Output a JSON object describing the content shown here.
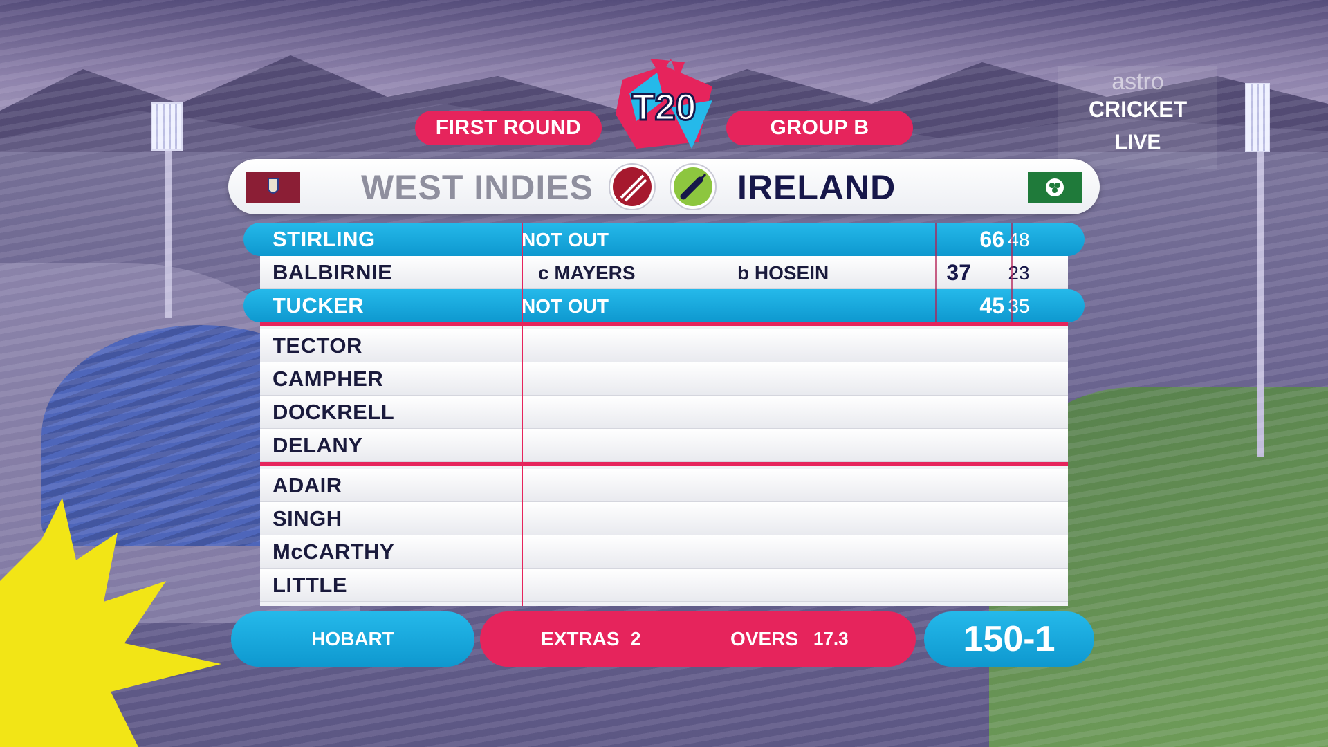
{
  "header": {
    "round_label": "FIRST ROUND",
    "group_label": "GROUP B",
    "logo_text": "T20"
  },
  "broadcaster": {
    "brand": "astro",
    "channel": "CRICKET",
    "status": "LIVE"
  },
  "match": {
    "bowling_team": "WEST INDIES",
    "batting_team": "IRELAND"
  },
  "batters": [
    {
      "name": "STIRLING",
      "dismissal": "NOT OUT",
      "bowler": "",
      "runs": "66",
      "balls": "48",
      "active": true
    },
    {
      "name": "BALBIRNIE",
      "dismissal": "c MAYERS",
      "bowler": "b HOSEIN",
      "runs": "37",
      "balls": "23",
      "active": false
    },
    {
      "name": "TUCKER",
      "dismissal": "NOT OUT",
      "bowler": "",
      "runs": "45",
      "balls": "35",
      "active": true
    },
    {
      "name": "TECTOR"
    },
    {
      "name": "CAMPHER"
    },
    {
      "name": "DOCKRELL"
    },
    {
      "name": "DELANY"
    },
    {
      "name": "ADAIR"
    },
    {
      "name": "SINGH"
    },
    {
      "name": "McCARTHY"
    },
    {
      "name": "LITTLE"
    }
  ],
  "footer": {
    "venue": "HOBART",
    "extras_label": "EXTRAS",
    "extras_value": "2",
    "overs_label": "OVERS",
    "overs_value": "17.3",
    "score": "150-1"
  },
  "colors": {
    "pink": "#e6245c",
    "blue": "#0e98cf",
    "navy": "#17174a"
  },
  "icons": [
    "cricket-ball-icon",
    "cricket-bat-icon",
    "west-indies-flag-icon",
    "ireland-flag-icon",
    "t20-world-cup-logo"
  ]
}
